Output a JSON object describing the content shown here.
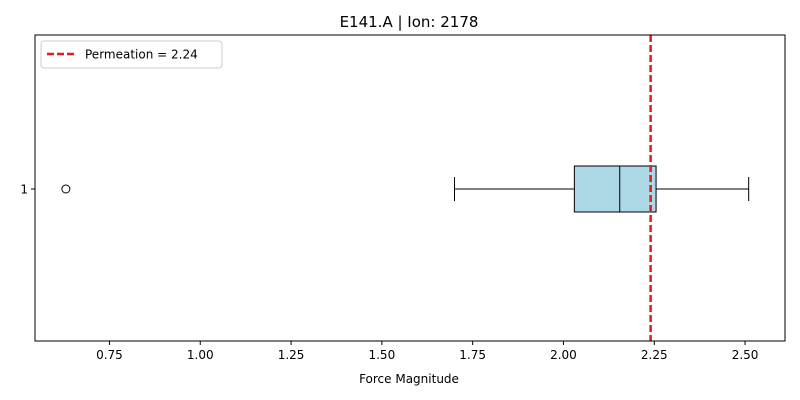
{
  "chart_data": {
    "type": "boxplot",
    "orientation": "horizontal",
    "title": "E141.A | Ion: 2178",
    "xlabel": "Force Magnitude",
    "ylabel": "",
    "xlim": [
      0.545,
      2.61
    ],
    "x_ticks": [
      "0.75",
      "1.00",
      "1.25",
      "1.50",
      "1.75",
      "2.00",
      "2.25",
      "2.50"
    ],
    "y_ticks": [
      "1"
    ],
    "box": {
      "category": "1",
      "whisker_low": 1.7,
      "q1": 2.03,
      "median": 2.155,
      "q3": 2.255,
      "whisker_high": 2.51,
      "outliers": [
        0.63
      ],
      "color": "#add8e6"
    },
    "reference_line": {
      "value": 2.24,
      "label": "Permeation = 2.24",
      "color": "#e41a1c",
      "style": "dashed"
    },
    "legend": {
      "position": "top-left"
    },
    "grid": false
  }
}
